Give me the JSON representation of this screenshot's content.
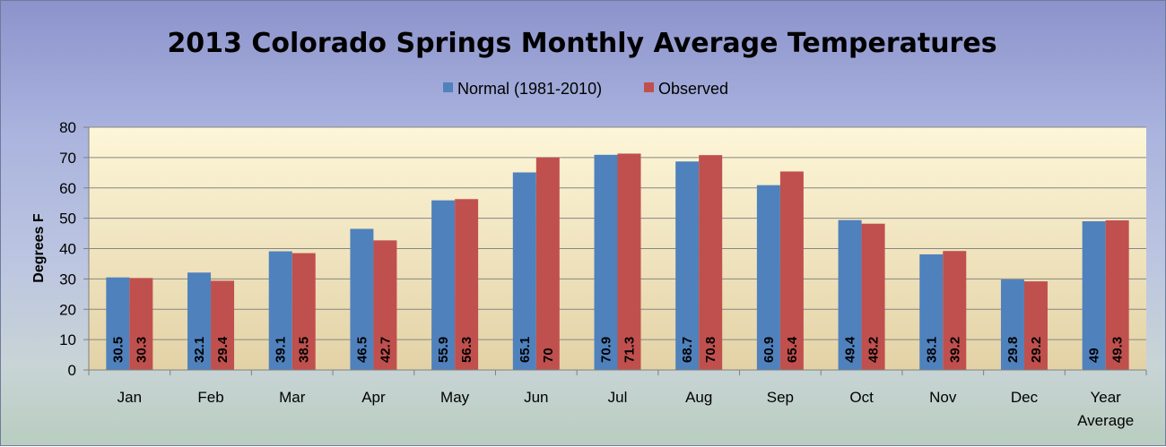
{
  "chart_data": {
    "type": "bar",
    "title": "2013 Colorado Springs Monthly Average Temperatures",
    "ylabel": "Degrees  F",
    "xlabel": "",
    "categories": [
      "Jan",
      "Feb",
      "Mar",
      "Apr",
      "May",
      "Jun",
      "Jul",
      "Aug",
      "Sep",
      "Oct",
      "Nov",
      "Dec",
      "Year Average"
    ],
    "series": [
      {
        "name": "Normal (1981-2010)",
        "color": "#4f81bd",
        "values": [
          30.5,
          32.1,
          39.1,
          46.5,
          55.9,
          65.1,
          70.9,
          68.7,
          60.9,
          49.4,
          38.1,
          29.8,
          49
        ]
      },
      {
        "name": "Observed",
        "color": "#c0504d",
        "values": [
          30.3,
          29.4,
          38.5,
          42.7,
          56.3,
          70,
          71.3,
          70.8,
          65.4,
          48.2,
          39.2,
          29.2,
          49.3
        ]
      }
    ],
    "ylim": [
      0,
      80
    ],
    "yticks": [
      0,
      10,
      20,
      30,
      40,
      50,
      60,
      70,
      80
    ],
    "grid": true,
    "legend": "top-center",
    "data_labels": true
  }
}
